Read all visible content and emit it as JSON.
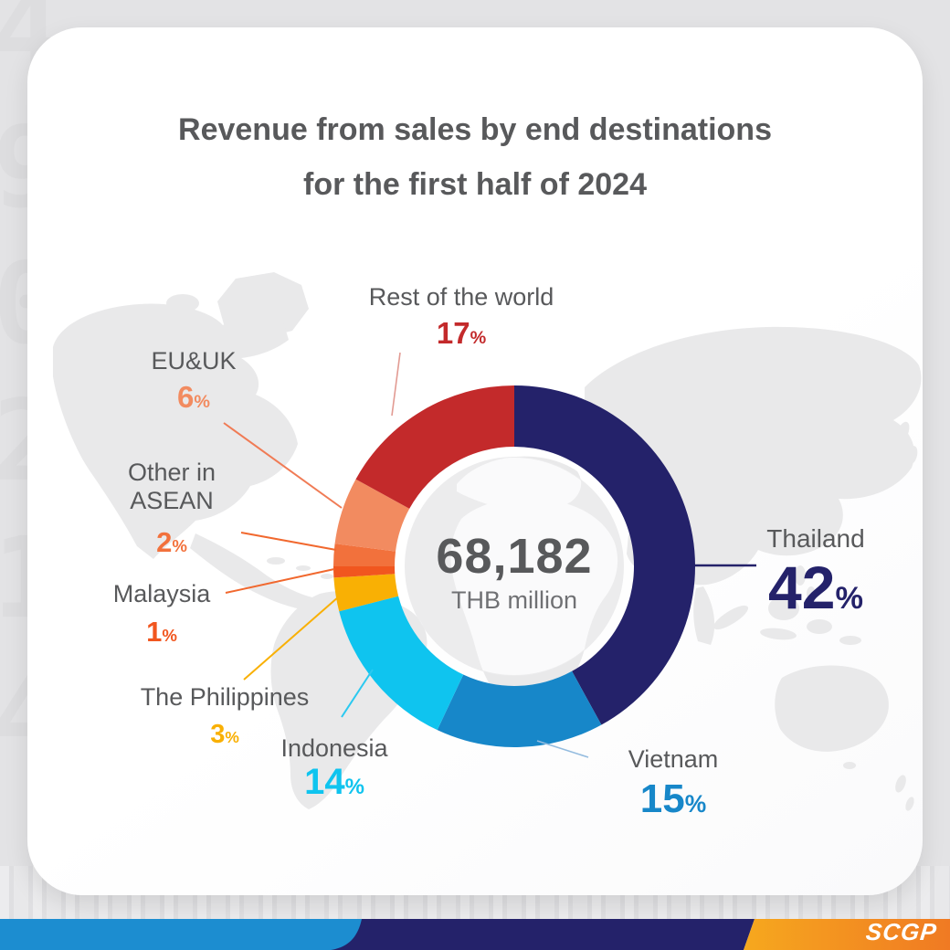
{
  "header": {
    "line1": "Revenue from sales by end destinations",
    "line2": "for the first half of 2024"
  },
  "chart_data": {
    "type": "pie",
    "variant": "donut",
    "title": "Revenue from sales by end destinations for the first half of 2024",
    "center_label": {
      "value": "68,182",
      "unit": "THB million"
    },
    "percent_sign": "%",
    "direction": "clockwise",
    "start_angle_deg": 0,
    "values_are": "percent share of revenue",
    "segments": [
      {
        "label": "Thailand",
        "value": 42,
        "color": "#24226A",
        "line_color": "#24226A"
      },
      {
        "label": "Vietnam",
        "value": 15,
        "color": "#1787C9",
        "line_color": "#94BCDF"
      },
      {
        "label": "Indonesia",
        "value": 14,
        "color": "#0FC4EF",
        "line_color": "#2BC9F0"
      },
      {
        "label": "The Philippines",
        "value": 3,
        "color": "#F9B004",
        "line_color": "#F9B004"
      },
      {
        "label": "Malaysia",
        "value": 1,
        "color": "#F1561F",
        "line_color": "#F1682E"
      },
      {
        "label": "Other in ASEAN",
        "value": 2,
        "color": "#F2713C",
        "line_color": "#F1682E"
      },
      {
        "label": "EU&UK",
        "value": 6,
        "color": "#F28B60",
        "line_color": "#F07B55"
      },
      {
        "label": "Rest of the world",
        "value": 17,
        "color": "#C32A2B",
        "line_color": "#E29B93"
      }
    ]
  },
  "footer": {
    "logo_text": "SCGP",
    "logo_color": "#FFFFFF",
    "blue": "#1C8DD0",
    "navy": "#24226A",
    "orange_start": "#F6A81E",
    "orange_end": "#F07A23"
  },
  "background_texture_digits": "4\n9\n0\n2\n1\n4"
}
